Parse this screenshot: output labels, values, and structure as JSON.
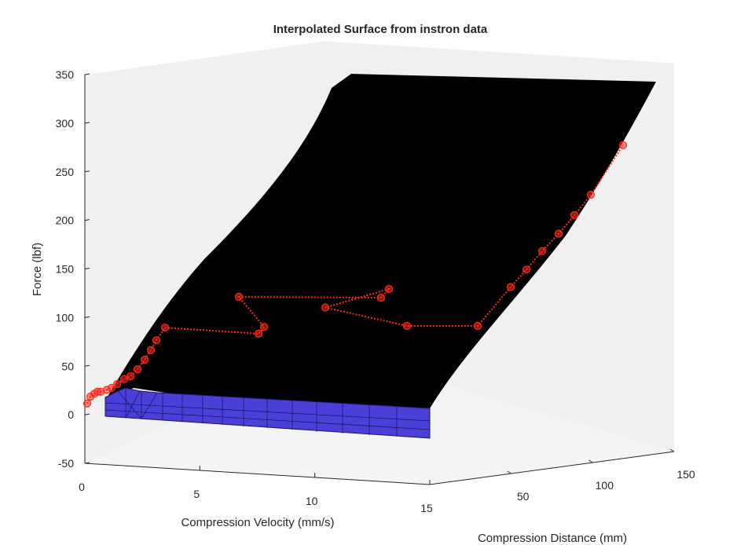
{
  "chart_data": {
    "type": "surface3d",
    "title": "Interpolated Surface from instron data",
    "xlabel": "Compression Velocity (mm/s)",
    "ylabel": "Compression Distance (mm)",
    "zlabel": "Force (lbf)",
    "xlim": [
      0,
      15
    ],
    "ylim": [
      0,
      150
    ],
    "zlim": [
      -50,
      350
    ],
    "x_ticks": [
      "0",
      "5",
      "10",
      "15"
    ],
    "y_ticks": [
      "50",
      "100",
      "150"
    ],
    "z_ticks": [
      "-50",
      "0",
      "50",
      "100",
      "150",
      "200",
      "250",
      "300",
      "350"
    ],
    "surface_color": "#000000",
    "base_color": "#4a3fd6",
    "points_color": "#ff2a1a",
    "pane_color": "#f0f0f0",
    "data_points": [
      {
        "force": 10
      },
      {
        "force": 17
      },
      {
        "force": 20
      },
      {
        "force": 22
      },
      {
        "force": 22
      },
      {
        "force": 24
      },
      {
        "force": 26
      },
      {
        "force": 30
      },
      {
        "force": 35
      },
      {
        "force": 38
      },
      {
        "force": 45
      },
      {
        "force": 55
      },
      {
        "force": 65
      },
      {
        "force": 75
      },
      {
        "force": 88
      },
      {
        "force": 85
      },
      {
        "force": 92
      },
      {
        "force": 123
      },
      {
        "force": 122
      },
      {
        "force": 131
      },
      {
        "force": 112
      },
      {
        "force": 93
      },
      {
        "force": 93
      },
      {
        "force": 133
      },
      {
        "force": 151
      },
      {
        "force": 170
      },
      {
        "force": 188
      },
      {
        "force": 207
      },
      {
        "force": 228
      },
      {
        "force": 279
      }
    ]
  }
}
